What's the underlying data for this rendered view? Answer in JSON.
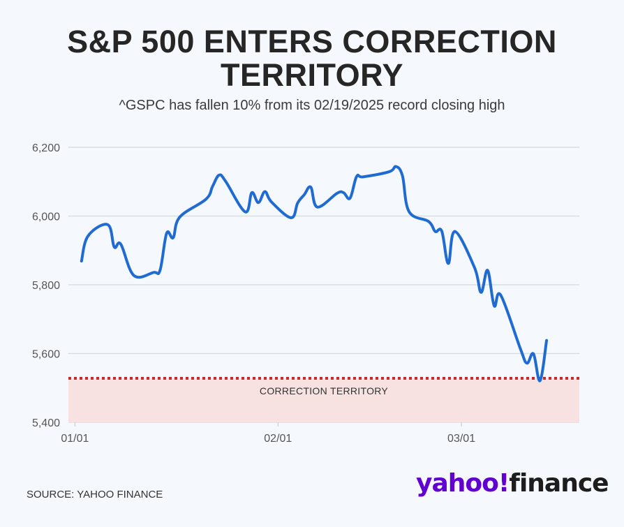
{
  "title": "S&P 500 ENTERS CORRECTION TERRITORY",
  "subtitle": "^GSPC has fallen 10% from its 02/19/2025 record closing high",
  "source": "SOURCE: YAHOO FINANCE",
  "logo": {
    "brand": "yahoo!",
    "product": "finance"
  },
  "colors": {
    "line": "#1f6bd1",
    "correction_fill": "#f7e1e1",
    "correction_line": "#c62a2a",
    "grid": "#d6dde5",
    "logo_purple": "#6001d2"
  },
  "chart_data": {
    "type": "line",
    "x_unit": "date",
    "ylim": [
      5400,
      6200
    ],
    "yticks": [
      5400,
      5600,
      5800,
      6000,
      6200
    ],
    "ytick_labels": [
      "5,400",
      "5,600",
      "5,800",
      "6,000",
      "6,200"
    ],
    "xlim": [
      "2024-12-31",
      "2025-03-19"
    ],
    "xticks": [
      "2025-01-01",
      "2025-02-01",
      "2025-03-01"
    ],
    "xtick_labels": [
      "01/01",
      "02/01",
      "03/01"
    ],
    "grid": true,
    "correction_threshold": 5528,
    "correction_label": "CORRECTION TERRITORY",
    "series": [
      {
        "x": [
          "2025-01-02",
          "2025-01-03",
          "2025-01-06",
          "2025-01-07",
          "2025-01-08",
          "2025-01-10",
          "2025-01-13",
          "2025-01-14",
          "2025-01-15",
          "2025-01-16",
          "2025-01-17",
          "2025-01-21",
          "2025-01-22",
          "2025-01-23",
          "2025-01-24",
          "2025-01-27",
          "2025-01-28",
          "2025-01-29",
          "2025-01-30",
          "2025-01-31",
          "2025-02-03",
          "2025-02-04",
          "2025-02-05",
          "2025-02-06",
          "2025-02-07",
          "2025-02-10",
          "2025-02-11",
          "2025-02-12",
          "2025-02-13",
          "2025-02-14",
          "2025-02-18",
          "2025-02-19",
          "2025-02-20",
          "2025-02-21",
          "2025-02-24",
          "2025-02-25",
          "2025-02-26",
          "2025-02-27",
          "2025-02-28",
          "2025-03-03",
          "2025-03-04",
          "2025-03-05",
          "2025-03-06",
          "2025-03-07",
          "2025-03-10",
          "2025-03-11",
          "2025-03-12",
          "2025-03-13",
          "2025-03-14"
        ],
        "y": [
          5869,
          5942,
          5975,
          5910,
          5918,
          5827,
          5836,
          5843,
          5950,
          5937,
          5997,
          6049,
          6086,
          6119,
          6101,
          6012,
          6068,
          6039,
          6071,
          6041,
          5995,
          6038,
          6062,
          6084,
          6026,
          6066,
          6068,
          6052,
          6115,
          6114,
          6129,
          6144,
          6117,
          6013,
          5984,
          5955,
          5956,
          5862,
          5955,
          5850,
          5778,
          5842,
          5739,
          5770,
          5614,
          5572,
          5599,
          5521,
          5638
        ]
      }
    ]
  }
}
